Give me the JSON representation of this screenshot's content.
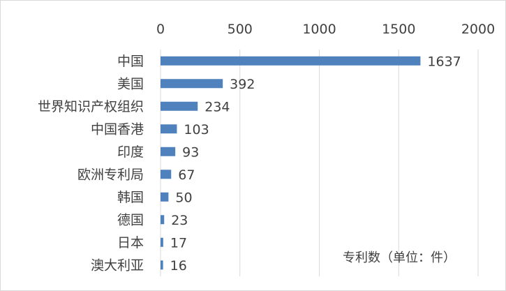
{
  "chart_data": {
    "type": "bar",
    "orientation": "horizontal",
    "categories": [
      "中国",
      "美国",
      "世界知识产权组织",
      "中国香港",
      "印度",
      "欧洲专利局",
      "韩国",
      "德国",
      "日本",
      "澳大利亚"
    ],
    "values": [
      1637,
      392,
      234,
      103,
      93,
      67,
      50,
      23,
      17,
      16
    ],
    "xlim": [
      0,
      2000
    ],
    "x_ticks": [
      "0",
      "500",
      "1000",
      "1500",
      "2000"
    ],
    "x_axis_position": "top",
    "grid": true,
    "data_labels": true,
    "annotation": "专利数（单位：件）",
    "bar_color": "#4f81bd",
    "grid_color": "#d9d9d9"
  }
}
